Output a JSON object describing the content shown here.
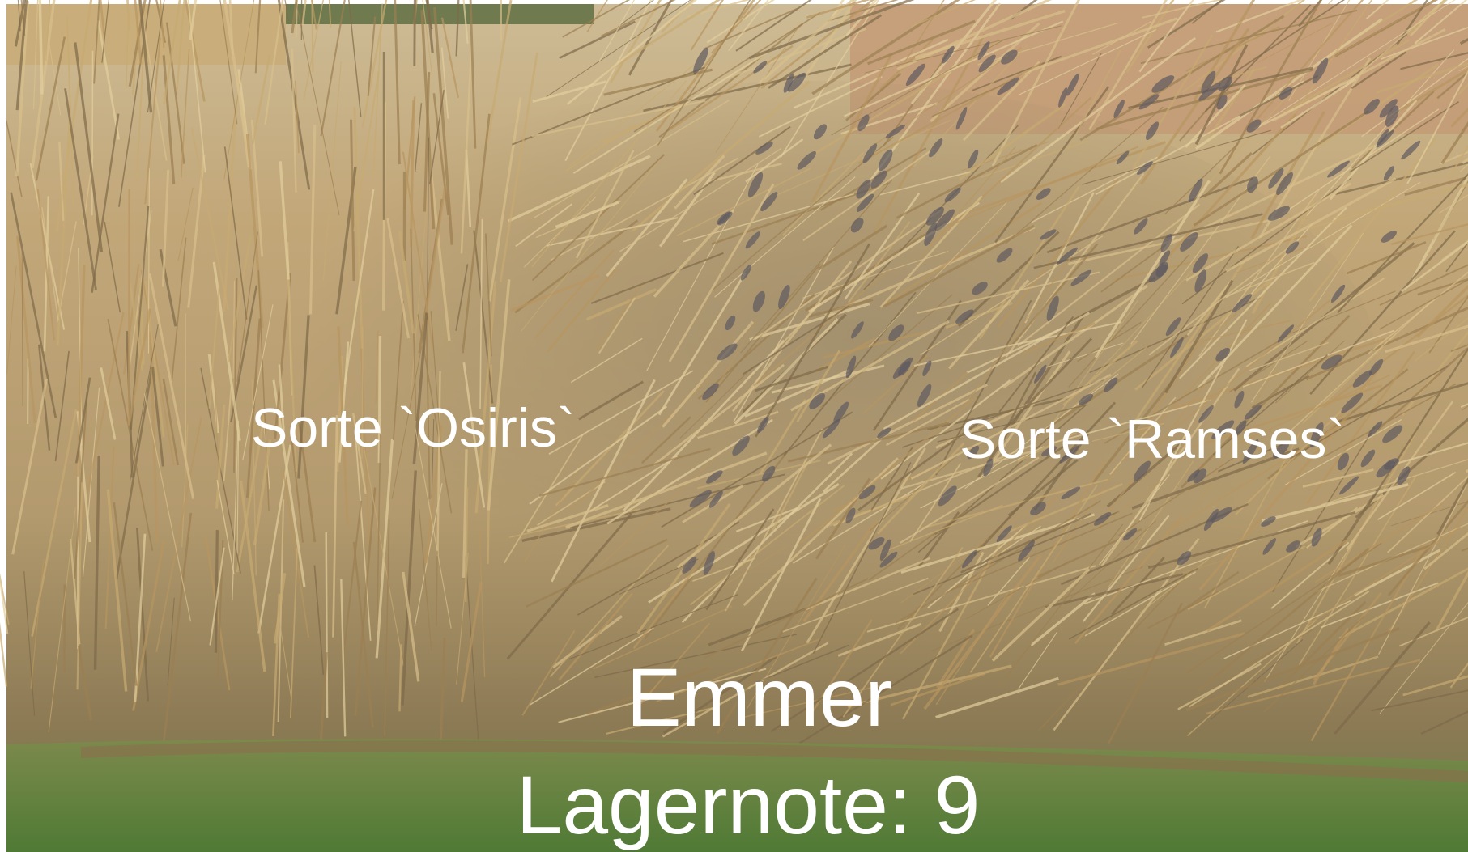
{
  "labels": {
    "osiris": "Sorte `Osiris`",
    "ramses": "Sorte `Ramses`"
  },
  "caption": {
    "title": "Emmer",
    "rating": "Lagernote: 9"
  }
}
